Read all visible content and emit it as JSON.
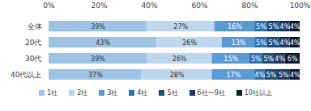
{
  "chart_data": {
    "type": "bar",
    "orientation": "horizontal",
    "stacked": true,
    "data_labels": true,
    "grid": false,
    "legend": "bottom",
    "categories": [
      "全体",
      "20代",
      "30代",
      "40代以上"
    ],
    "xlim": [
      0,
      100
    ],
    "xticks": [
      {
        "value": 0,
        "label": "0%"
      },
      {
        "value": 20,
        "label": "20%"
      },
      {
        "value": 40,
        "label": "40%"
      },
      {
        "value": 60,
        "label": "60%"
      },
      {
        "value": 80,
        "label": "80%"
      },
      {
        "value": 100,
        "label": "100%"
      }
    ],
    "series": [
      {
        "name": "1社",
        "color": "#9dc3e6",
        "values": [
          39,
          43,
          39,
          37
        ],
        "value_labels": [
          "39%",
          "43%",
          "39%",
          "37%"
        ]
      },
      {
        "name": "2社",
        "color": "#bdd7ee",
        "values": [
          27,
          26,
          26,
          28
        ],
        "value_labels": [
          "27%",
          "26%",
          "26%",
          "28%"
        ]
      },
      {
        "name": "3社",
        "color": "#5b9bd5",
        "values": [
          16,
          13,
          15,
          17
        ],
        "value_labels": [
          "16%",
          "13%",
          "15%",
          "17%"
        ]
      },
      {
        "name": "4社",
        "color": "#2e75b6",
        "values": [
          5,
          5,
          5,
          4
        ],
        "value_labels": [
          "5%",
          "5%",
          "5%",
          "4%"
        ]
      },
      {
        "name": "5社",
        "color": "#1f4e79",
        "values": [
          5,
          5,
          5,
          5
        ],
        "value_labels": [
          "5%",
          "5%",
          "5%",
          "5%"
        ]
      },
      {
        "name": "6社〜9社",
        "color": "#203864",
        "values": [
          4,
          4,
          4,
          5
        ],
        "value_labels": [
          "4%",
          "4%",
          "4%",
          "5%"
        ]
      },
      {
        "name": "10社以上",
        "color": "#0b1d3a",
        "values": [
          4,
          4,
          6,
          4
        ],
        "value_labels": [
          "4%",
          "4%",
          "6%",
          "4%"
        ]
      }
    ]
  }
}
